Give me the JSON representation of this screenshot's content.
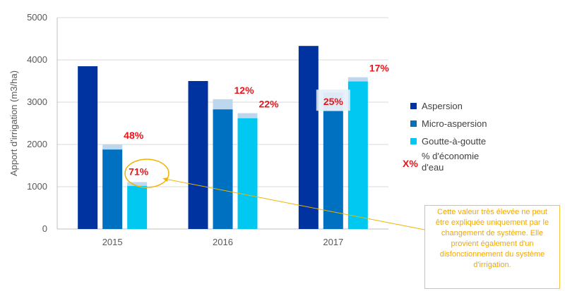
{
  "chart_data": {
    "type": "bar",
    "categories": [
      "2015",
      "2016",
      "2017"
    ],
    "ylabel": "Apport d'irrigation (m3/ha)",
    "ylim": [
      0,
      5000
    ],
    "yticks": [
      "0",
      "1000",
      "2000",
      "3000",
      "4000",
      "5000"
    ],
    "ytick_values": [
      0,
      1000,
      2000,
      3000,
      4000,
      5000
    ],
    "grid": true,
    "legend_position": "right",
    "series": [
      {
        "name": "Aspersion",
        "color": "#0033a0",
        "values": [
          3850,
          3500,
          4330
        ],
        "upper_values": [
          null,
          null,
          null
        ],
        "savings_labels": [
          "",
          "",
          ""
        ]
      },
      {
        "name": "Micro-aspersion",
        "color": "#0070c0",
        "values": [
          1880,
          2830,
          2790
        ],
        "upper_values": [
          2000,
          3070,
          3230
        ],
        "savings_labels": [
          "48%",
          "12%",
          "25%"
        ]
      },
      {
        "name": "Goutte-à-goutte",
        "color": "#00c8f0",
        "values": [
          1020,
          2620,
          3490
        ],
        "upper_values": [
          1110,
          2740,
          3590
        ],
        "savings_labels": [
          "71%",
          "22%",
          "17%"
        ]
      }
    ],
    "legend_extra": {
      "marker": "X%",
      "label": "% d'économie d'eau"
    },
    "annotation": "Cette valeur très élevée ne peut être expliquée uniquement par le changement de système. Elle provient également d'un disfonctionnement du système d'irrigation."
  }
}
